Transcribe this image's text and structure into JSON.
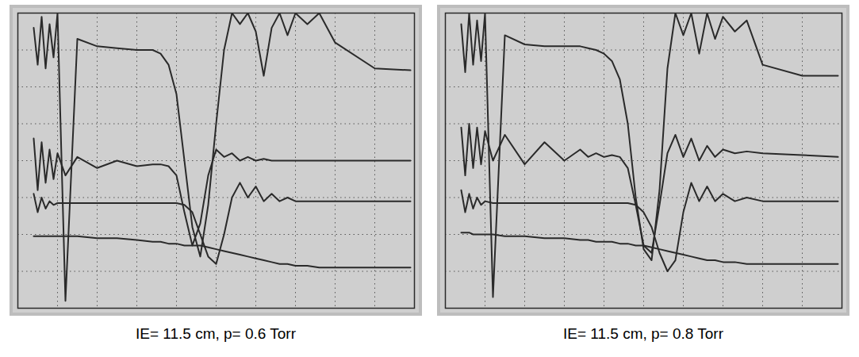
{
  "chart_data": [
    {
      "type": "line",
      "caption": "IE= 11.5 cm, p= 0.6 Torr",
      "x": [
        0.4,
        0.5,
        0.6,
        0.7,
        0.8,
        0.9,
        1.0,
        1.2,
        1.5,
        2.0,
        2.5,
        3.0,
        3.4,
        3.6,
        3.8,
        4.0,
        4.2,
        4.4,
        4.6,
        4.8,
        5.0,
        5.2,
        5.4,
        5.6,
        5.8,
        6.0,
        6.2,
        6.4,
        6.6,
        6.8,
        7.0,
        7.3,
        7.6,
        8.0,
        9.0,
        9.9
      ],
      "xlim": [
        0,
        10
      ],
      "ylim": [
        0,
        8
      ],
      "xticks": [
        0,
        1,
        2,
        3,
        4,
        5,
        6,
        7,
        8,
        9,
        10
      ],
      "yticks": [
        0,
        1,
        2,
        3,
        4,
        5,
        6,
        7,
        8
      ],
      "grid": true,
      "tick_labels": false,
      "series": [
        {
          "color": "#2a2a2a",
          "values": [
            7.6,
            6.6,
            7.9,
            6.5,
            7.7,
            6.8,
            8.0,
            0.2,
            7.3,
            7.1,
            7.05,
            7.0,
            7.0,
            6.9,
            6.6,
            5.8,
            4.0,
            2.2,
            1.4,
            2.8,
            5.0,
            7.0,
            8.0,
            7.7,
            8.0,
            7.5,
            6.3,
            7.6,
            8.0,
            7.4,
            8.0,
            7.7,
            8.0,
            7.2,
            6.5,
            6.45
          ]
        },
        {
          "color": "#2a2a2a",
          "values": [
            4.6,
            3.2,
            4.5,
            3.4,
            4.3,
            3.5,
            4.2,
            3.6,
            4.1,
            3.8,
            4.0,
            3.85,
            3.9,
            3.9,
            3.85,
            3.6,
            2.6,
            1.7,
            2.3,
            3.6,
            4.3,
            4.1,
            4.2,
            4.0,
            4.1,
            4.0,
            4.05,
            4.0,
            4.0,
            4.0,
            4.0,
            4.0,
            4.0,
            4.0,
            4.0,
            4.0
          ]
        },
        {
          "color": "#2a2a2a",
          "values": [
            3.1,
            2.6,
            3.0,
            2.7,
            2.9,
            2.8,
            2.85,
            2.85,
            2.85,
            2.85,
            2.85,
            2.85,
            2.85,
            2.85,
            2.85,
            2.85,
            2.8,
            2.6,
            2.0,
            1.4,
            1.2,
            2.0,
            3.0,
            3.4,
            3.0,
            3.3,
            2.9,
            3.1,
            2.9,
            3.0,
            2.9,
            2.9,
            2.9,
            2.9,
            2.9,
            2.9
          ]
        },
        {
          "color": "#2a2a2a",
          "values": [
            1.95,
            1.95,
            1.95,
            1.95,
            1.95,
            1.95,
            1.95,
            1.95,
            1.95,
            1.9,
            1.9,
            1.85,
            1.8,
            1.8,
            1.75,
            1.75,
            1.7,
            1.7,
            1.7,
            1.65,
            1.6,
            1.55,
            1.5,
            1.45,
            1.4,
            1.35,
            1.3,
            1.25,
            1.2,
            1.2,
            1.15,
            1.15,
            1.1,
            1.1,
            1.1,
            1.1
          ]
        }
      ]
    },
    {
      "type": "line",
      "caption": "IE= 11.5 cm, p= 0.8 Torr",
      "x": [
        0.4,
        0.5,
        0.6,
        0.7,
        0.8,
        0.9,
        1.0,
        1.2,
        1.5,
        2.0,
        2.5,
        3.0,
        3.4,
        3.6,
        3.8,
        4.0,
        4.2,
        4.4,
        4.6,
        4.8,
        5.0,
        5.2,
        5.4,
        5.6,
        5.8,
        6.0,
        6.2,
        6.4,
        6.6,
        6.8,
        7.0,
        7.3,
        7.6,
        8.0,
        9.0,
        9.9
      ],
      "xlim": [
        0,
        10
      ],
      "ylim": [
        0,
        8
      ],
      "xticks": [
        0,
        1,
        2,
        3,
        4,
        5,
        6,
        7,
        8,
        9,
        10
      ],
      "yticks": [
        0,
        1,
        2,
        3,
        4,
        5,
        6,
        7,
        8
      ],
      "grid": true,
      "tick_labels": false,
      "series": [
        {
          "color": "#2a2a2a",
          "values": [
            7.7,
            6.4,
            8.0,
            6.6,
            7.8,
            6.7,
            8.0,
            0.3,
            7.4,
            7.15,
            7.1,
            7.1,
            7.1,
            7.05,
            7.0,
            6.9,
            6.7,
            6.2,
            5.0,
            3.0,
            1.6,
            1.3,
            3.2,
            6.5,
            8.0,
            7.4,
            8.0,
            6.9,
            8.0,
            7.3,
            7.9,
            7.5,
            7.8,
            6.6,
            6.3,
            6.3
          ]
        },
        {
          "color": "#2a2a2a",
          "values": [
            4.9,
            3.6,
            5.0,
            3.8,
            4.9,
            3.9,
            4.8,
            4.0,
            4.7,
            3.9,
            4.5,
            4.0,
            4.3,
            4.1,
            4.2,
            4.1,
            4.15,
            4.1,
            3.8,
            2.8,
            1.7,
            1.5,
            2.8,
            4.2,
            4.7,
            4.1,
            4.6,
            4.0,
            4.4,
            4.1,
            4.3,
            4.2,
            4.25,
            4.2,
            4.15,
            4.1
          ]
        },
        {
          "color": "#2a2a2a",
          "values": [
            3.2,
            2.6,
            3.1,
            2.7,
            3.0,
            2.8,
            2.9,
            2.85,
            2.85,
            2.85,
            2.85,
            2.85,
            2.85,
            2.85,
            2.85,
            2.85,
            2.85,
            2.85,
            2.85,
            2.8,
            2.6,
            2.2,
            1.5,
            1.0,
            1.3,
            2.6,
            3.4,
            2.9,
            3.3,
            2.9,
            3.1,
            2.9,
            3.0,
            2.9,
            2.9,
            2.9
          ]
        },
        {
          "color": "#2a2a2a",
          "values": [
            2.05,
            2.05,
            2.05,
            2.0,
            2.0,
            2.0,
            2.0,
            2.0,
            1.95,
            1.95,
            1.9,
            1.9,
            1.85,
            1.85,
            1.8,
            1.8,
            1.8,
            1.75,
            1.75,
            1.7,
            1.7,
            1.65,
            1.6,
            1.55,
            1.5,
            1.45,
            1.4,
            1.35,
            1.3,
            1.3,
            1.25,
            1.25,
            1.2,
            1.2,
            1.2,
            1.2
          ]
        }
      ]
    }
  ]
}
